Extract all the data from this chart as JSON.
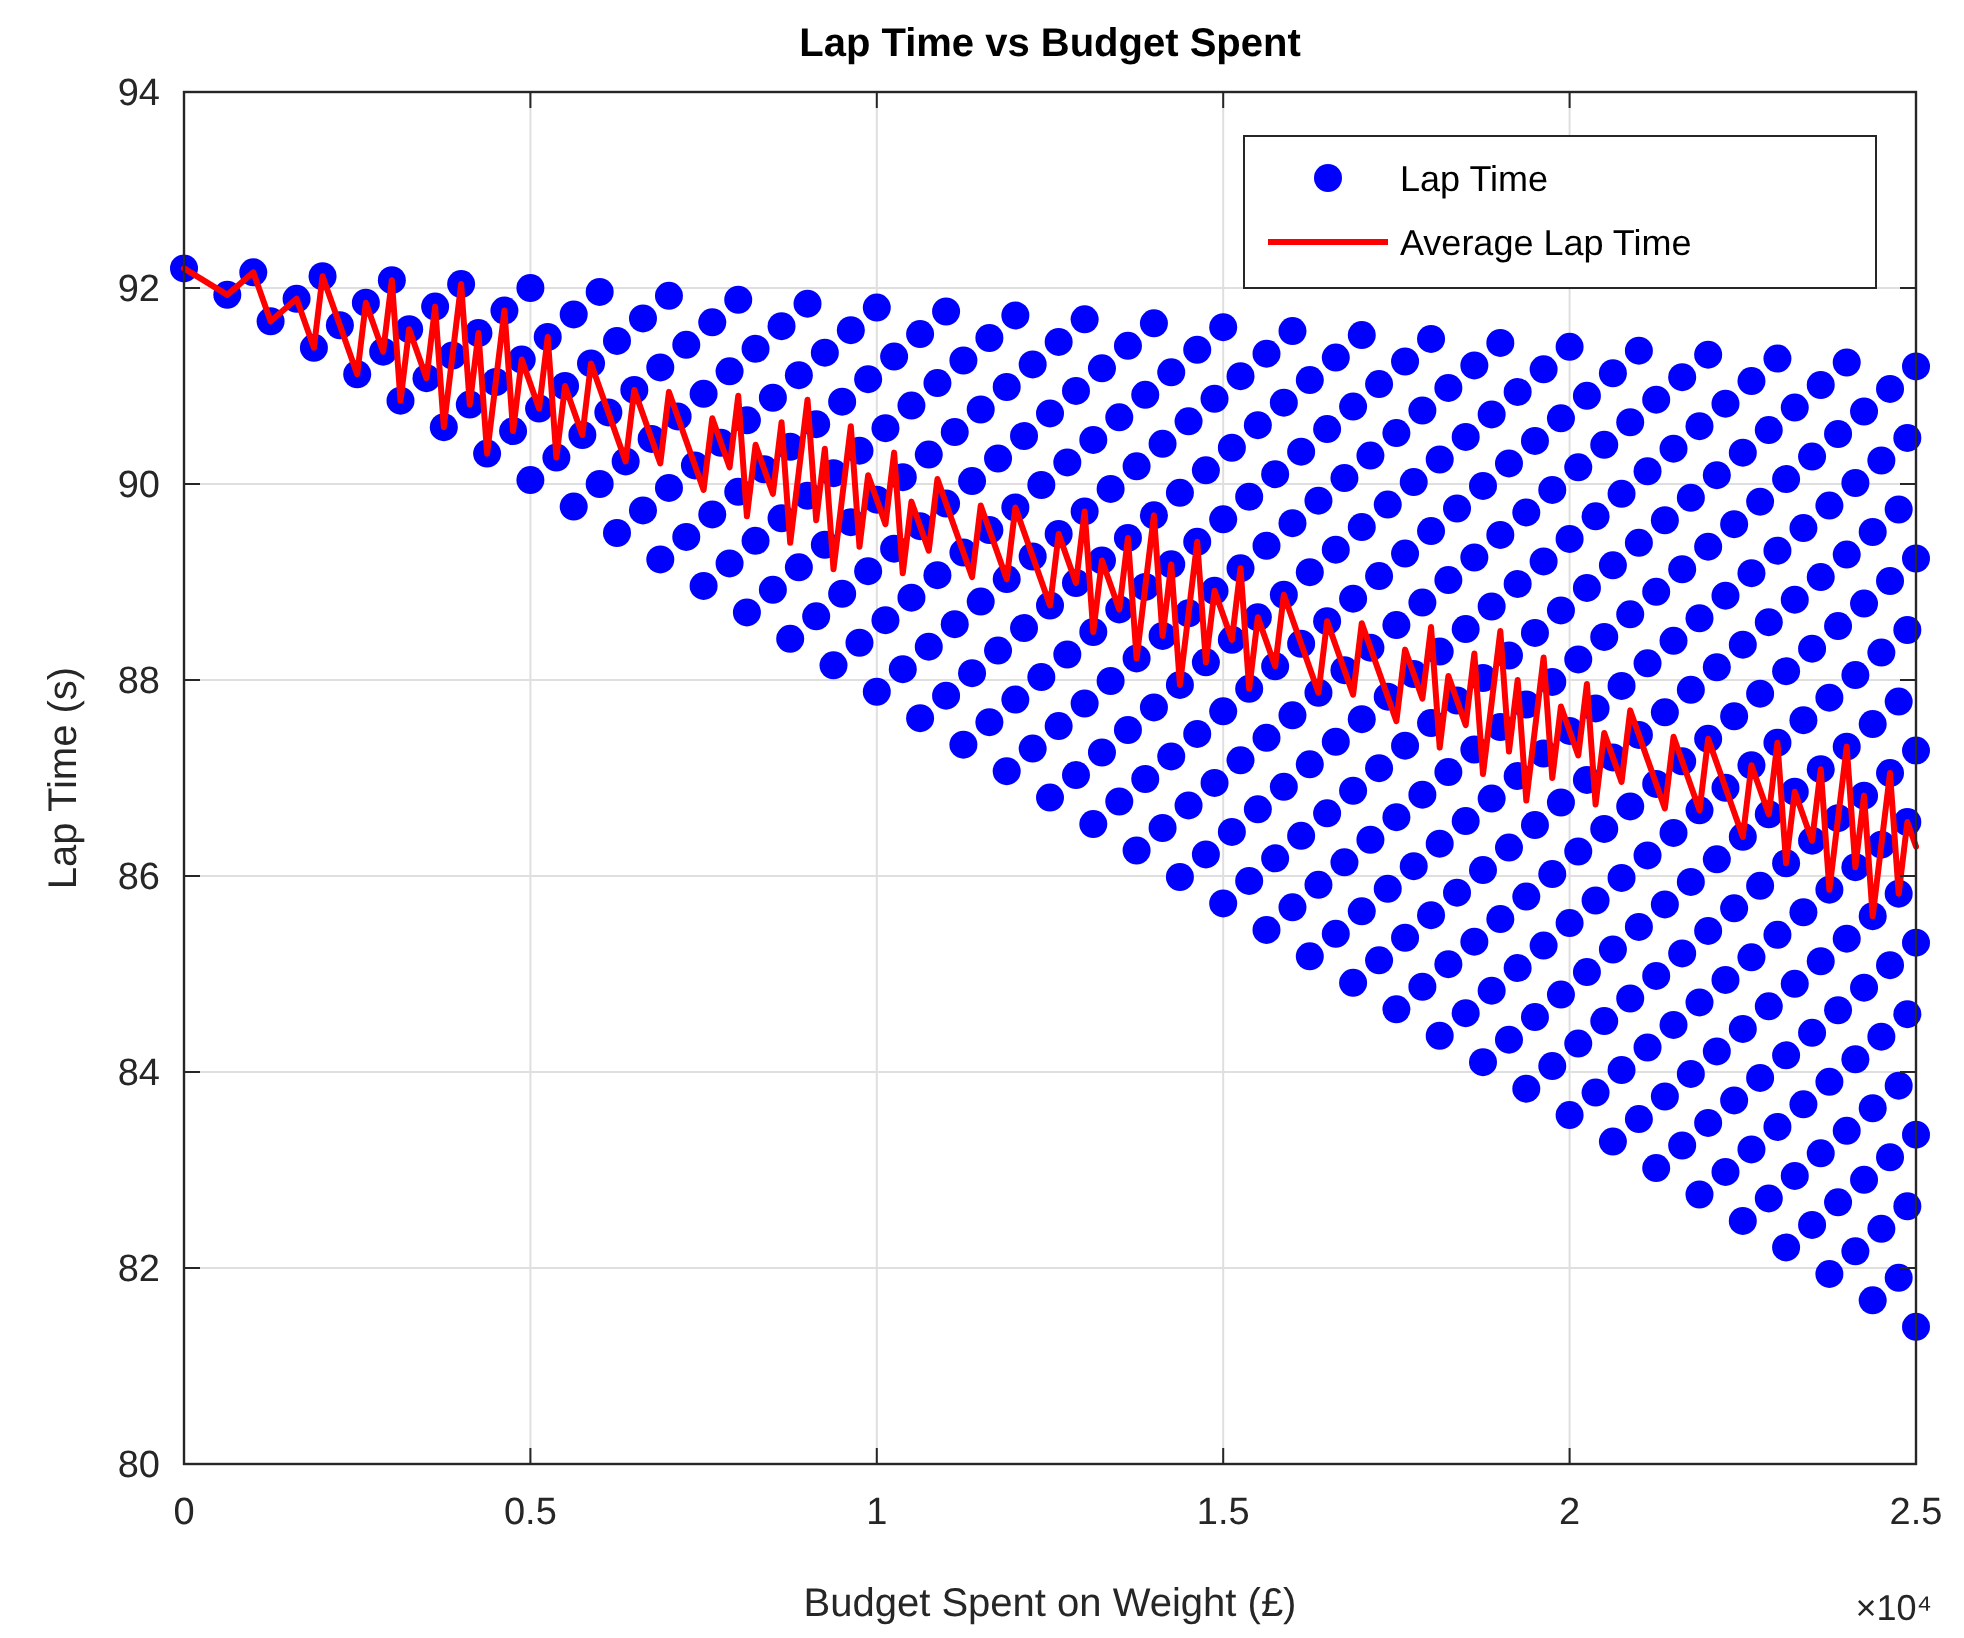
{
  "chart_data": {
    "type": "scatter",
    "title": "Lap Time vs Budget Spent",
    "xlabel": "Budget Spent on Weight (£)",
    "ylabel": "Lap Time (s)",
    "annotations": [
      "×10⁴"
    ],
    "xlim": [
      0,
      2.5
    ],
    "xticks": [
      0,
      0.5,
      1,
      1.5,
      2,
      2.5
    ],
    "ylim": [
      80,
      94
    ],
    "yticks": [
      80,
      82,
      84,
      86,
      88,
      90,
      92,
      94
    ],
    "grid": true,
    "legend": "top right",
    "series": [
      {
        "name": "Lap Time",
        "marker": "circle",
        "color": "#0000ff",
        "x": [
          0,
          0.0625,
          0.125,
          0.1875,
          0.25,
          0.3125,
          0.375,
          0.4375,
          0.5,
          0.5625,
          0.625,
          0.6875,
          0.75,
          0.8125,
          0.875,
          0.9375,
          1,
          1.0625,
          1.125,
          1.1875,
          1.25,
          1.3125,
          1.375,
          1.4375,
          1.5,
          1.5625,
          1.625,
          1.6875,
          1.75,
          1.8125,
          1.875,
          1.9375,
          2,
          2.0625,
          2.125,
          2.1875,
          2.25,
          2.3125,
          2.375,
          2.4375,
          2.5,
          0.1,
          0.1625,
          0.225,
          0.2875,
          0.35,
          0.4125,
          0.475,
          0.5375,
          0.6,
          0.6625,
          0.725,
          0.7875,
          0.85,
          0.9125,
          0.975,
          1.0375,
          1.1,
          1.1625,
          1.225,
          1.2875,
          1.35,
          1.4125,
          1.475,
          1.5375,
          1.6,
          1.6625,
          1.725,
          1.7875,
          1.85,
          1.9125,
          1.975,
          2.0375,
          2.1,
          2.1625,
          2.225,
          2.2875,
          2.35,
          2.4125,
          2.475,
          0.2,
          0.2625,
          0.325,
          0.3875,
          0.45,
          0.5125,
          0.575,
          0.6375,
          0.7,
          0.7625,
          0.825,
          0.8875,
          0.95,
          1.0125,
          1.075,
          1.1375,
          1.2,
          1.2625,
          1.325,
          1.3875,
          1.45,
          1.5125,
          1.575,
          1.6375,
          1.7,
          1.7625,
          1.825,
          1.8875,
          1.95,
          2.0125,
          2.075,
          2.1375,
          2.2,
          2.2625,
          2.325,
          2.3875,
          2.45,
          0.3,
          0.3625,
          0.425,
          0.4875,
          0.55,
          0.6125,
          0.675,
          0.7375,
          0.8,
          0.8625,
          0.925,
          0.9875,
          1.05,
          1.1125,
          1.175,
          1.2375,
          1.3,
          1.3625,
          1.425,
          1.4875,
          1.55,
          1.6125,
          1.675,
          1.7375,
          1.8,
          1.8625,
          1.925,
          1.9875,
          2.05,
          2.1125,
          2.175,
          2.2375,
          2.3,
          2.3625,
          2.425,
          2.4875,
          0.4,
          0.4625,
          0.525,
          0.5875,
          0.65,
          0.7125,
          0.775,
          0.8375,
          0.9,
          0.9625,
          1.025,
          1.0875,
          1.15,
          1.2125,
          1.275,
          1.3375,
          1.4,
          1.4625,
          1.525,
          1.5875,
          1.65,
          1.7125,
          1.775,
          1.8375,
          1.9,
          1.9625,
          2.025,
          2.0875,
          2.15,
          2.2125,
          2.275,
          2.3375,
          2.4,
          2.4625,
          0.5,
          0.5625,
          0.625,
          0.6875,
          0.75,
          0.8125,
          0.875,
          0.9375,
          1,
          1.0625,
          1.125,
          1.1875,
          1.25,
          1.3125,
          1.375,
          1.4375,
          1.5,
          1.5625,
          1.625,
          1.6875,
          1.75,
          1.8125,
          1.875,
          1.9375,
          2,
          2.0625,
          2.125,
          2.1875,
          2.25,
          2.3125,
          2.375,
          2.4375,
          2.5,
          0.6,
          0.6625,
          0.725,
          0.7875,
          0.85,
          0.9125,
          0.975,
          1.0375,
          1.1,
          1.1625,
          1.225,
          1.2875,
          1.35,
          1.4125,
          1.475,
          1.5375,
          1.6,
          1.6625,
          1.725,
          1.7875,
          1.85,
          1.9125,
          1.975,
          2.0375,
          2.1,
          2.1625,
          2.225,
          2.2875,
          2.35,
          2.4125,
          2.475,
          0.7,
          0.7625,
          0.825,
          0.8875,
          0.95,
          1.0125,
          1.075,
          1.1375,
          1.2,
          1.2625,
          1.325,
          1.3875,
          1.45,
          1.5125,
          1.575,
          1.6375,
          1.7,
          1.7625,
          1.825,
          1.8875,
          1.95,
          2.0125,
          2.075,
          2.1375,
          2.2,
          2.2625,
          2.325,
          2.3875,
          2.45,
          0.8,
          0.8625,
          0.925,
          0.9875,
          1.05,
          1.1125,
          1.175,
          1.2375,
          1.3,
          1.3625,
          1.425,
          1.4875,
          1.55,
          1.6125,
          1.675,
          1.7375,
          1.8,
          1.8625,
          1.925,
          1.9875,
          2.05,
          2.1125,
          2.175,
          2.2375,
          2.3,
          2.3625,
          2.425,
          2.4875,
          0.9,
          0.9625,
          1.025,
          1.0875,
          1.15,
          1.2125,
          1.275,
          1.3375,
          1.4,
          1.4625,
          1.525,
          1.5875,
          1.65,
          1.7125,
          1.775,
          1.8375,
          1.9,
          1.9625,
          2.025,
          2.0875,
          2.15,
          2.2125,
          2.275,
          2.3375,
          2.4,
          2.4625,
          1,
          1.0625,
          1.125,
          1.1875,
          1.25,
          1.3125,
          1.375,
          1.4375,
          1.5,
          1.5625,
          1.625,
          1.6875,
          1.75,
          1.8125,
          1.875,
          1.9375,
          2,
          2.0625,
          2.125,
          2.1875,
          2.25,
          2.3125,
          2.375,
          2.4375,
          2.5,
          1.1,
          1.1625,
          1.225,
          1.2875,
          1.35,
          1.4125,
          1.475,
          1.5375,
          1.6,
          1.6625,
          1.725,
          1.7875,
          1.85,
          1.9125,
          1.975,
          2.0375,
          2.1,
          2.1625,
          2.225,
          2.2875,
          2.35,
          2.4125,
          2.475,
          1.2,
          1.2625,
          1.325,
          1.3875,
          1.45,
          1.5125,
          1.575,
          1.6375,
          1.7,
          1.7625,
          1.825,
          1.8875,
          1.95,
          2.0125,
          2.075,
          2.1375,
          2.2,
          2.2625,
          2.325,
          2.3875,
          2.45,
          1.3,
          1.3625,
          1.425,
          1.4875,
          1.55,
          1.6125,
          1.675,
          1.7375,
          1.8,
          1.8625,
          1.925,
          1.9875,
          2.05,
          2.1125,
          2.175,
          2.2375,
          2.3,
          2.3625,
          2.425,
          2.4875,
          1.4,
          1.4625,
          1.525,
          1.5875,
          1.65,
          1.7125,
          1.775,
          1.8375,
          1.9,
          1.9625,
          2.025,
          2.0875,
          2.15,
          2.2125,
          2.275,
          2.3375,
          2.4,
          2.4625,
          1.5,
          1.5625,
          1.625,
          1.6875,
          1.75,
          1.8125,
          1.875,
          1.9375,
          2,
          2.0625,
          2.125,
          2.1875,
          2.25,
          2.3125,
          2.375,
          2.4375,
          2.5,
          1.6,
          1.6625,
          1.725,
          1.7875,
          1.85,
          1.9125,
          1.975,
          2.0375,
          2.1,
          2.1625,
          2.225,
          2.2875,
          2.35,
          2.4125,
          2.475,
          1.7,
          1.7625,
          1.825,
          1.8875,
          1.95,
          2.0125,
          2.075,
          2.1375,
          2.2,
          2.2625,
          2.325,
          2.3875,
          2.45,
          1.8,
          1.8625,
          1.925,
          1.9875,
          2.05,
          2.1125,
          2.175,
          2.2375,
          2.3,
          2.3625,
          2.425,
          2.4875,
          1.9,
          1.9625,
          2.025,
          2.0875,
          2.15,
          2.2125,
          2.275,
          2.3375,
          2.4,
          2.4625,
          2,
          2.0625,
          2.125,
          2.1875,
          2.25,
          2.3125,
          2.375,
          2.4375,
          2.5,
          2.1,
          2.1625,
          2.225,
          2.2875,
          2.35,
          2.4125,
          2.475,
          2.2,
          2.2625,
          2.325,
          2.3875,
          2.45,
          2.3,
          2.3625,
          2.425,
          2.4875,
          2.4,
          2.4625,
          2.5
        ],
        "values": [
          92.2,
          91.93,
          91.66,
          91.39,
          91.12,
          90.85,
          90.58,
          90.31,
          90.04,
          89.77,
          89.5,
          89.23,
          88.96,
          88.69,
          88.42,
          88.15,
          87.88,
          87.61,
          87.34,
          87.07,
          86.8,
          86.53,
          86.26,
          85.99,
          85.72,
          85.45,
          85.18,
          84.91,
          84.64,
          84.37,
          84.1,
          83.83,
          83.56,
          83.29,
          83.02,
          82.75,
          82.48,
          82.21,
          81.94,
          81.67,
          81.4,
          92.16,
          91.89,
          91.62,
          91.35,
          91.08,
          90.81,
          90.54,
          90.27,
          90,
          89.73,
          89.46,
          89.19,
          88.92,
          88.65,
          88.38,
          88.11,
          87.84,
          87.57,
          87.3,
          87.03,
          86.76,
          86.49,
          86.22,
          85.95,
          85.68,
          85.41,
          85.14,
          84.87,
          84.6,
          84.33,
          84.06,
          83.79,
          83.52,
          83.25,
          82.98,
          82.71,
          82.44,
          82.17,
          81.9,
          92.12,
          91.85,
          91.58,
          91.31,
          91.04,
          90.77,
          90.5,
          90.23,
          89.96,
          89.69,
          89.42,
          89.15,
          88.88,
          88.61,
          88.34,
          88.07,
          87.8,
          87.53,
          87.26,
          86.99,
          86.72,
          86.45,
          86.18,
          85.91,
          85.64,
          85.37,
          85.1,
          84.83,
          84.56,
          84.29,
          84.02,
          83.75,
          83.48,
          83.21,
          82.94,
          82.67,
          82.4,
          92.08,
          91.81,
          91.54,
          91.27,
          91,
          90.73,
          90.46,
          90.19,
          89.92,
          89.65,
          89.38,
          89.11,
          88.84,
          88.57,
          88.3,
          88.03,
          87.76,
          87.49,
          87.22,
          86.95,
          86.68,
          86.41,
          86.14,
          85.87,
          85.6,
          85.33,
          85.06,
          84.79,
          84.52,
          84.25,
          83.98,
          83.71,
          83.44,
          83.17,
          82.9,
          82.63,
          92.04,
          91.77,
          91.5,
          91.23,
          90.96,
          90.69,
          90.42,
          90.15,
          89.88,
          89.61,
          89.34,
          89.07,
          88.8,
          88.53,
          88.26,
          87.99,
          87.72,
          87.45,
          87.18,
          86.91,
          86.64,
          86.37,
          86.1,
          85.83,
          85.56,
          85.29,
          85.02,
          84.75,
          84.48,
          84.21,
          83.94,
          83.67,
          83.4,
          83.13,
          92,
          91.73,
          91.46,
          91.19,
          90.92,
          90.65,
          90.38,
          90.11,
          89.84,
          89.57,
          89.3,
          89.03,
          88.76,
          88.49,
          88.22,
          87.95,
          87.68,
          87.41,
          87.14,
          86.87,
          86.6,
          86.33,
          86.06,
          85.79,
          85.52,
          85.25,
          84.98,
          84.71,
          84.44,
          84.17,
          83.9,
          83.63,
          83.36,
          91.96,
          91.69,
          91.42,
          91.15,
          90.88,
          90.61,
          90.34,
          90.07,
          89.8,
          89.53,
          89.26,
          88.99,
          88.72,
          88.45,
          88.18,
          87.91,
          87.64,
          87.37,
          87.1,
          86.83,
          86.56,
          86.29,
          86.02,
          85.75,
          85.48,
          85.21,
          84.94,
          84.67,
          84.4,
          84.13,
          83.86,
          91.92,
          91.65,
          91.38,
          91.11,
          90.84,
          90.57,
          90.3,
          90.03,
          89.76,
          89.49,
          89.22,
          88.95,
          88.68,
          88.41,
          88.14,
          87.87,
          87.6,
          87.33,
          87.06,
          86.79,
          86.52,
          86.25,
          85.98,
          85.71,
          85.44,
          85.17,
          84.9,
          84.63,
          84.36,
          91.88,
          91.61,
          91.34,
          91.07,
          90.8,
          90.53,
          90.26,
          89.99,
          89.72,
          89.45,
          89.18,
          88.91,
          88.64,
          88.37,
          88.1,
          87.83,
          87.56,
          87.29,
          87.02,
          86.75,
          86.48,
          86.21,
          85.94,
          85.67,
          85.4,
          85.13,
          84.86,
          84.59,
          91.84,
          91.57,
          91.3,
          91.03,
          90.76,
          90.49,
          90.22,
          89.95,
          89.68,
          89.41,
          89.14,
          88.87,
          88.6,
          88.33,
          88.06,
          87.79,
          87.52,
          87.25,
          86.98,
          86.71,
          86.44,
          86.17,
          85.9,
          85.63,
          85.36,
          85.09,
          91.8,
          91.53,
          91.26,
          90.99,
          90.72,
          90.45,
          90.18,
          89.91,
          89.64,
          89.37,
          89.1,
          88.83,
          88.56,
          88.29,
          88.02,
          87.75,
          87.48,
          87.21,
          86.94,
          86.67,
          86.4,
          86.13,
          85.86,
          85.59,
          85.32,
          91.76,
          91.49,
          91.22,
          90.95,
          90.68,
          90.41,
          90.14,
          89.87,
          89.6,
          89.33,
          89.06,
          88.79,
          88.52,
          88.25,
          87.98,
          87.71,
          87.44,
          87.17,
          86.9,
          86.63,
          86.36,
          86.09,
          85.82,
          91.72,
          91.45,
          91.18,
          90.91,
          90.64,
          90.37,
          90.1,
          89.83,
          89.56,
          89.29,
          89.02,
          88.75,
          88.48,
          88.21,
          87.94,
          87.67,
          87.4,
          87.13,
          86.86,
          86.59,
          86.32,
          91.68,
          91.41,
          91.14,
          90.87,
          90.6,
          90.33,
          90.06,
          89.79,
          89.52,
          89.25,
          88.98,
          88.71,
          88.44,
          88.17,
          87.9,
          87.63,
          87.36,
          87.09,
          86.82,
          86.55,
          91.64,
          91.37,
          91.1,
          90.83,
          90.56,
          90.29,
          90.02,
          89.75,
          89.48,
          89.21,
          88.94,
          88.67,
          88.4,
          88.13,
          87.86,
          87.59,
          87.32,
          87.05,
          91.6,
          91.33,
          91.06,
          90.79,
          90.52,
          90.25,
          89.98,
          89.71,
          89.44,
          89.17,
          88.9,
          88.63,
          88.36,
          88.09,
          87.82,
          87.55,
          87.28,
          91.56,
          91.29,
          91.02,
          90.75,
          90.48,
          90.21,
          89.94,
          89.67,
          89.4,
          89.13,
          88.86,
          88.59,
          88.32,
          88.05,
          87.78,
          91.52,
          91.25,
          90.98,
          90.71,
          90.44,
          90.17,
          89.9,
          89.63,
          89.36,
          89.09,
          88.82,
          88.55,
          88.28,
          91.48,
          91.21,
          90.94,
          90.67,
          90.4,
          90.13,
          89.86,
          89.59,
          89.32,
          89.05,
          88.78,
          88.51,
          91.44,
          91.17,
          90.9,
          90.63,
          90.36,
          90.09,
          89.82,
          89.55,
          89.28,
          89.01,
          91.4,
          91.13,
          90.86,
          90.59,
          90.32,
          90.05,
          89.78,
          89.51,
          89.24,
          91.36,
          91.09,
          90.82,
          90.55,
          90.28,
          90.01,
          89.74,
          91.32,
          91.05,
          90.78,
          90.51,
          90.24,
          91.28,
          91.01,
          90.74,
          90.47,
          91.24,
          90.97,
          91.2
        ]
      },
      {
        "name": "Average Lap Time",
        "type": "line",
        "marker": "none",
        "line_style": "solid",
        "color": "#ff0000",
        "x": [
          0,
          0.0625,
          0.1,
          0.125,
          0.1625,
          0.1875,
          0.2,
          0.225,
          0.25,
          0.2625,
          0.2875,
          0.3,
          0.3125,
          0.325,
          0.35,
          0.3625,
          0.375,
          0.3875,
          0.4,
          0.4125,
          0.425,
          0.4375,
          0.45,
          0.4625,
          0.475,
          0.4875,
          0.5,
          0.5125,
          0.525,
          0.5375,
          0.55,
          0.5625,
          0.575,
          0.5875,
          0.6,
          0.6125,
          0.625,
          0.6375,
          0.65,
          0.6625,
          0.675,
          0.6875,
          0.7,
          0.7125,
          0.725,
          0.7375,
          0.75,
          0.7625,
          0.775,
          0.7875,
          0.8,
          0.8125,
          0.825,
          0.8375,
          0.85,
          0.8625,
          0.875,
          0.8875,
          0.9,
          0.9125,
          0.925,
          0.9375,
          0.95,
          0.9625,
          0.975,
          0.9875,
          1,
          1.0125,
          1.025,
          1.0375,
          1.05,
          1.0625,
          1.075,
          1.0875,
          1.1,
          1.1125,
          1.125,
          1.1375,
          1.15,
          1.1625,
          1.175,
          1.1875,
          1.2,
          1.2125,
          1.225,
          1.2375,
          1.25,
          1.2625,
          1.275,
          1.2875,
          1.3,
          1.3125,
          1.325,
          1.3375,
          1.35,
          1.3625,
          1.375,
          1.3875,
          1.4,
          1.4125,
          1.425,
          1.4375,
          1.45,
          1.4625,
          1.475,
          1.4875,
          1.5,
          1.5125,
          1.525,
          1.5375,
          1.55,
          1.5625,
          1.575,
          1.5875,
          1.6,
          1.6125,
          1.625,
          1.6375,
          1.65,
          1.6625,
          1.675,
          1.6875,
          1.7,
          1.7125,
          1.725,
          1.7375,
          1.75,
          1.7625,
          1.775,
          1.7875,
          1.8,
          1.8125,
          1.825,
          1.8375,
          1.85,
          1.8625,
          1.875,
          1.8875,
          1.9,
          1.9125,
          1.925,
          1.9375,
          1.95,
          1.9625,
          1.975,
          1.9875,
          2,
          2.0125,
          2.025,
          2.0375,
          2.05,
          2.0625,
          2.075,
          2.0875,
          2.1,
          2.1125,
          2.125,
          2.1375,
          2.15,
          2.1625,
          2.175,
          2.1875,
          2.2,
          2.2125,
          2.225,
          2.2375,
          2.25,
          2.2625,
          2.275,
          2.2875,
          2.3,
          2.3125,
          2.325,
          2.3375,
          2.35,
          2.3625,
          2.375,
          2.3875,
          2.4,
          2.4125,
          2.425,
          2.4375,
          2.45,
          2.4625,
          2.475,
          2.4875,
          2.5
        ],
        "values": [
          92.2,
          91.93,
          92.16,
          91.66,
          91.89,
          91.39,
          92.12,
          91.62,
          91.12,
          91.85,
          91.35,
          92.08,
          90.85,
          91.58,
          91.08,
          91.81,
          90.58,
          91.31,
          92.04,
          90.81,
          91.54,
          90.31,
          91.04,
          91.77,
          90.54,
          91.27,
          91.02,
          90.77,
          91.5,
          90.27,
          91,
          90.75,
          90.5,
          91.23,
          90.98,
          90.73,
          90.48,
          90.23,
          90.96,
          90.71,
          90.46,
          90.21,
          90.94,
          90.69,
          90.44,
          90.19,
          89.94,
          90.67,
          90.42,
          90.17,
          90.9,
          89.67,
          90.4,
          90.15,
          89.9,
          90.63,
          89.4,
          90.13,
          90.86,
          89.63,
          90.36,
          89.13,
          89.86,
          90.59,
          89.36,
          90.09,
          89.84,
          89.59,
          90.32,
          89.09,
          89.82,
          89.57,
          89.32,
          90.05,
          89.8,
          89.55,
          89.3,
          89.05,
          89.78,
          89.53,
          89.28,
          89.03,
          89.76,
          89.51,
          89.26,
          89.01,
          88.76,
          89.49,
          89.24,
          88.99,
          89.72,
          88.49,
          89.22,
          88.97,
          88.72,
          89.45,
          88.22,
          88.95,
          89.68,
          88.45,
          89.18,
          87.95,
          88.68,
          89.41,
          88.18,
          88.91,
          88.66,
          88.41,
          89.14,
          87.91,
          88.64,
          88.39,
          88.14,
          88.87,
          88.62,
          88.37,
          88.12,
          87.87,
          88.6,
          88.35,
          88.1,
          87.85,
          88.58,
          88.33,
          88.08,
          87.83,
          87.58,
          88.31,
          88.06,
          87.81,
          88.54,
          87.31,
          88.04,
          87.79,
          87.54,
          88.27,
          87.04,
          87.77,
          88.5,
          87.27,
          88,
          86.77,
          87.5,
          88.23,
          87,
          87.73,
          87.48,
          87.23,
          87.96,
          86.73,
          87.46,
          87.21,
          86.96,
          87.69,
          87.44,
          87.19,
          86.94,
          86.69,
          87.42,
          87.17,
          86.92,
          86.67,
          87.4,
          87.15,
          86.9,
          86.65,
          86.4,
          87.13,
          86.88,
          86.63,
          87.36,
          86.13,
          86.86,
          86.61,
          86.36,
          87.09,
          85.86,
          86.59,
          87.32,
          86.09,
          86.82,
          85.59,
          86.32,
          87.05,
          85.82,
          86.55,
          86.3
        ]
      }
    ]
  }
}
